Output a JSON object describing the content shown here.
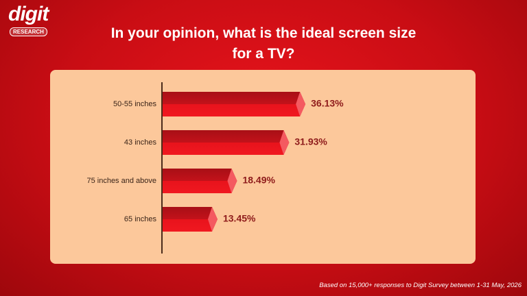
{
  "brand": {
    "name": "digit",
    "tag": "RESEARCH"
  },
  "chart_data": {
    "type": "bar",
    "orientation": "horizontal",
    "title": "In your opinion, what is the ideal screen size for a TV?",
    "categories": [
      "50-55 inches",
      "43 inches",
      "75 inches and above",
      "65 inches"
    ],
    "values": [
      36.13,
      31.93,
      18.49,
      13.45
    ],
    "value_labels": [
      "36.13%",
      "31.93%",
      "18.49%",
      "13.45%"
    ],
    "color": "#e3101a",
    "footnote": "Based on 15,000+ responses to Digit Survey between 1-31 May, 2026"
  }
}
